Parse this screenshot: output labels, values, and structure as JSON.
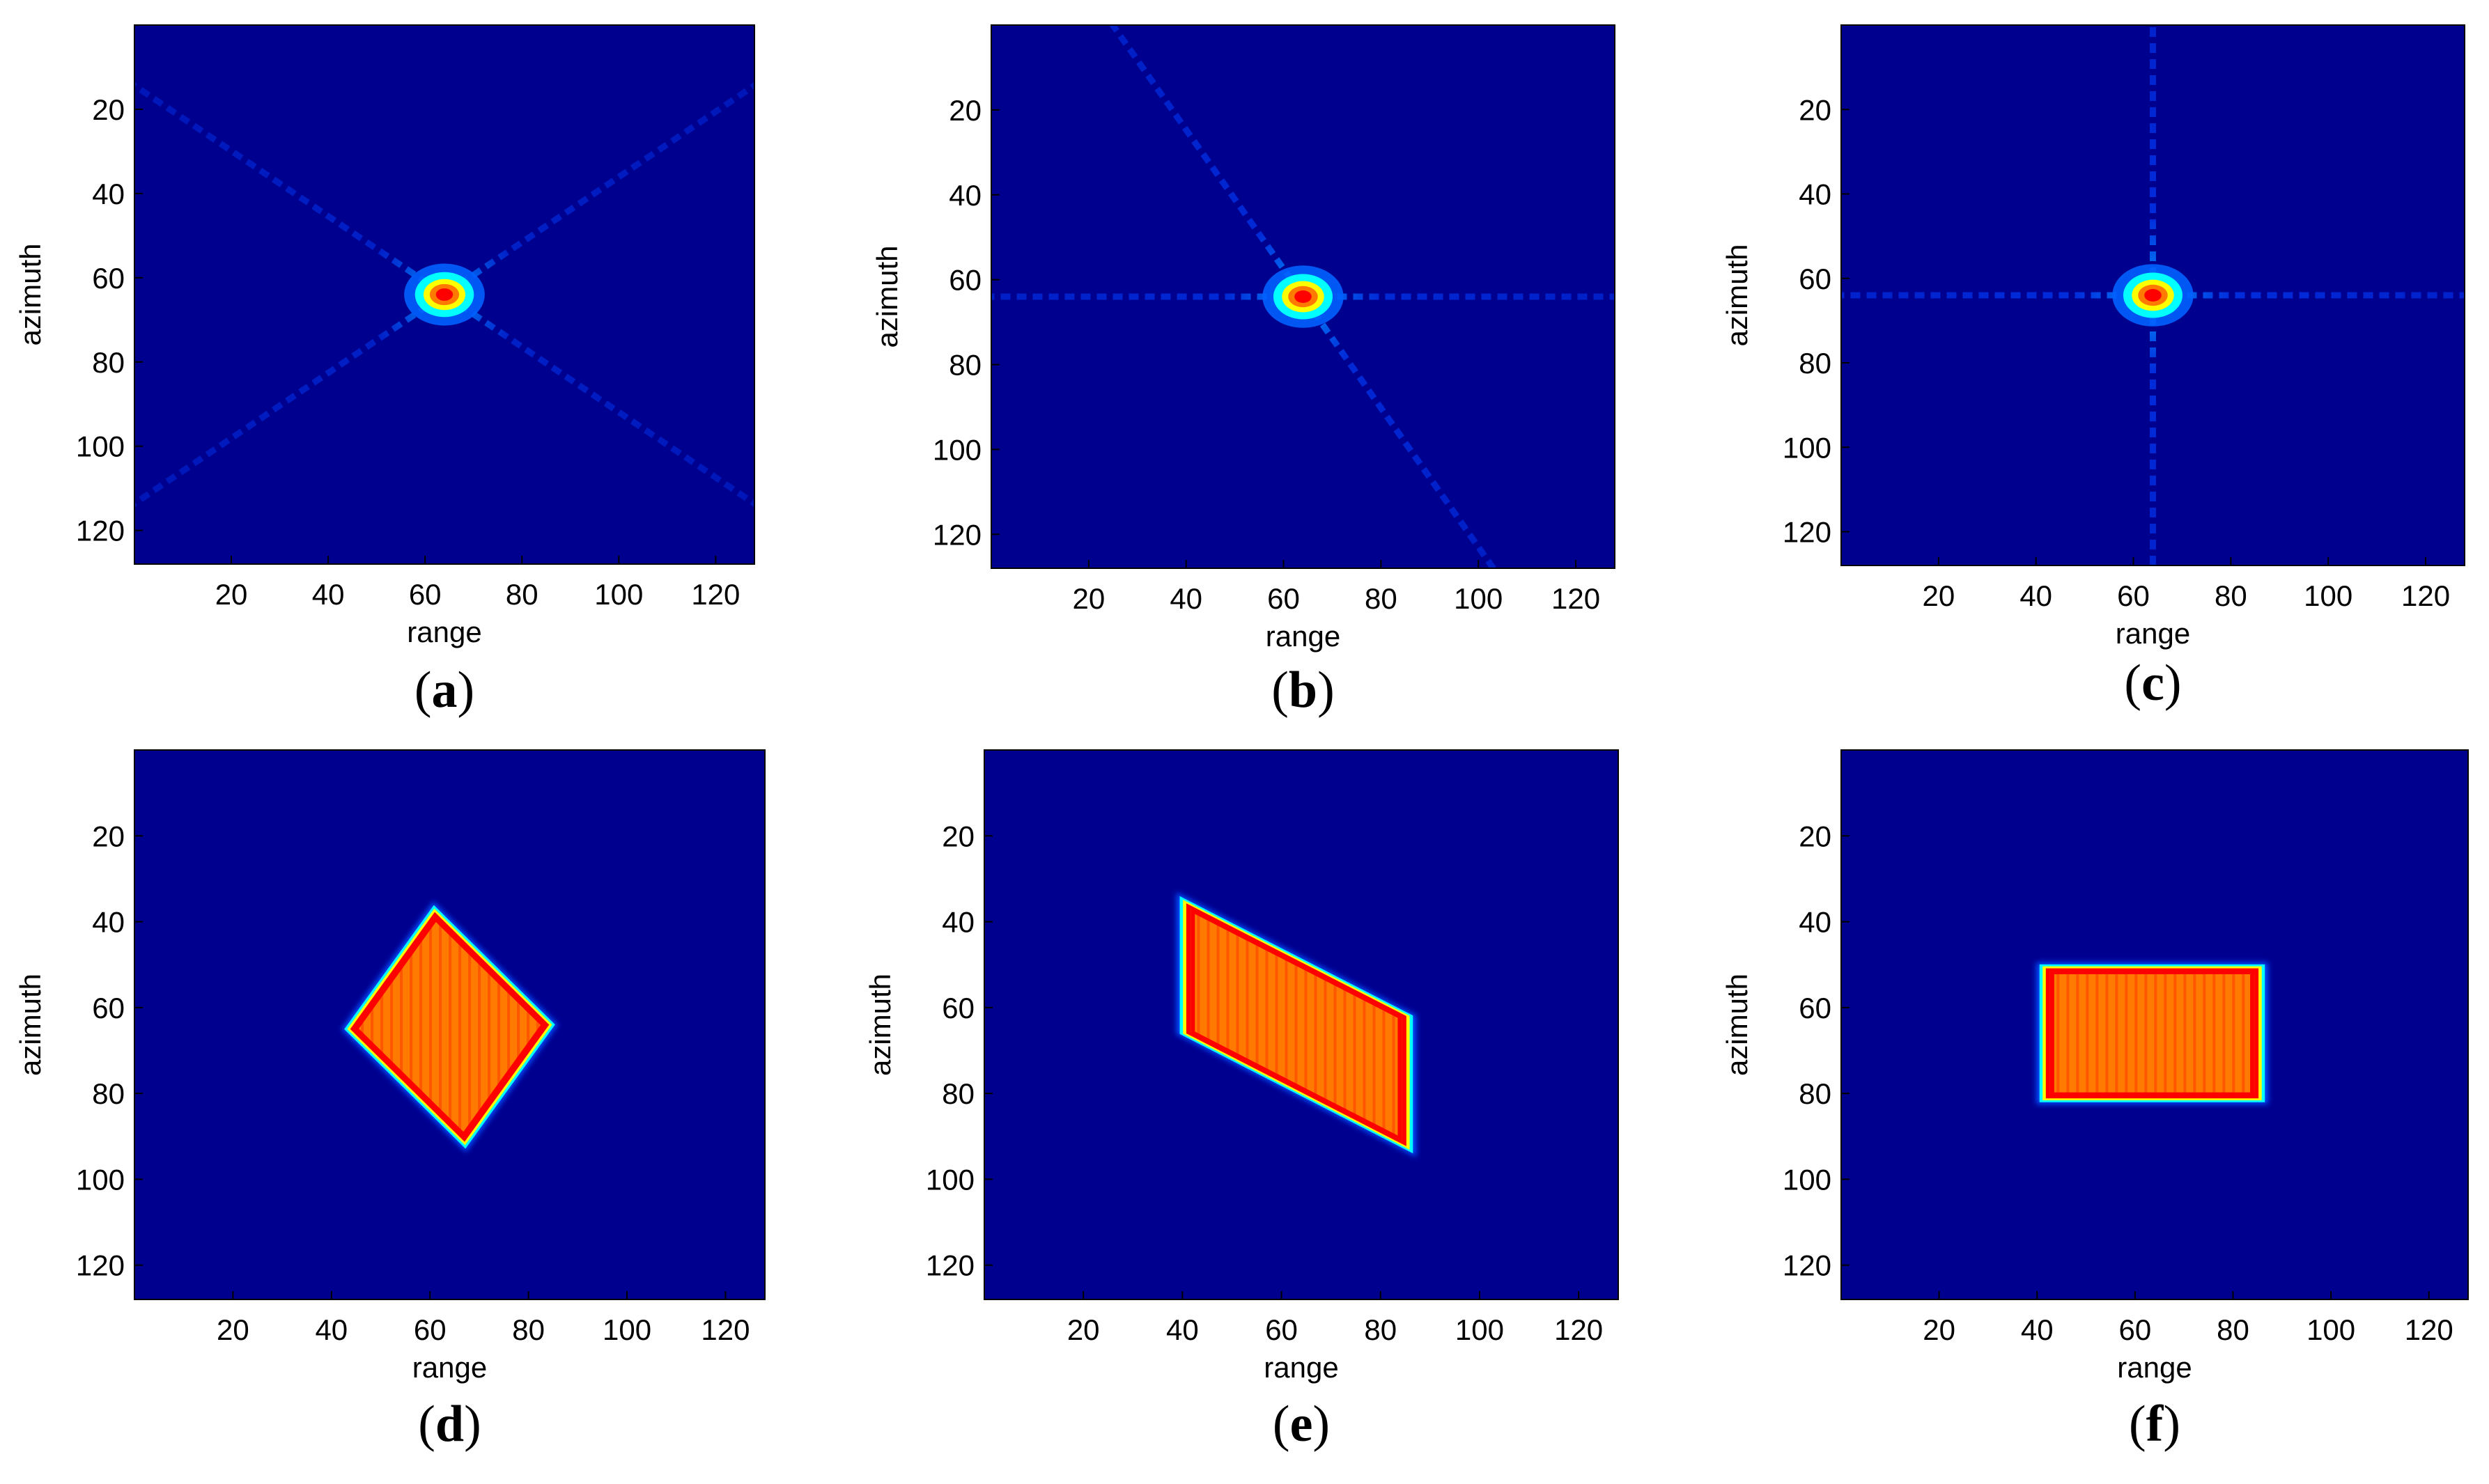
{
  "colors": {
    "background_field": "#00008f",
    "hot_core": "#ff0000",
    "warm_fill": "#ff7a00",
    "edge_yellow": "#ffff00",
    "edge_cyan": "#00ffff",
    "edge_blue": "#0080ff"
  },
  "chart_data": [
    {
      "type": "heatmap",
      "panel": "a",
      "caption_letter": "a",
      "xlabel": "range",
      "ylabel": "azimuth",
      "xlim": [
        0,
        128
      ],
      "ylim": [
        128,
        0
      ],
      "xticks": [
        20,
        40,
        60,
        80,
        100,
        120
      ],
      "yticks": [
        20,
        40,
        60,
        80,
        100,
        120
      ],
      "shape": "point",
      "peak": [
        64,
        64
      ],
      "sidelobe_angles_deg": [
        34,
        -34
      ],
      "sidelobe_strength": 0.55
    },
    {
      "type": "heatmap",
      "panel": "b",
      "caption_letter": "b",
      "xlabel": "range",
      "ylabel": "azimuth",
      "xlim": [
        0,
        128
      ],
      "ylim": [
        128,
        0
      ],
      "xticks": [
        20,
        40,
        60,
        80,
        100,
        120
      ],
      "yticks": [
        20,
        40,
        60,
        80,
        100,
        120
      ],
      "shape": "point",
      "peak": [
        64,
        64
      ],
      "sidelobe_angles_deg": [
        0,
        -55
      ],
      "sidelobe_strength": 0.7
    },
    {
      "type": "heatmap",
      "panel": "c",
      "caption_letter": "c",
      "xlabel": "range",
      "ylabel": "azimuth",
      "xlim": [
        0,
        128
      ],
      "ylim": [
        128,
        0
      ],
      "xticks": [
        20,
        40,
        60,
        80,
        100,
        120
      ],
      "yticks": [
        20,
        40,
        60,
        80,
        100,
        120
      ],
      "shape": "point",
      "peak": [
        64,
        64
      ],
      "sidelobe_angles_deg": [
        0,
        90
      ],
      "sidelobe_strength": 0.75
    },
    {
      "type": "heatmap",
      "panel": "d",
      "caption_letter": "d",
      "xlabel": "range",
      "ylabel": "azimuth",
      "xlim": [
        0,
        128
      ],
      "ylim": [
        128,
        0
      ],
      "xticks": [
        20,
        40,
        60,
        80,
        100,
        120
      ],
      "yticks": [
        20,
        40,
        60,
        80,
        100,
        120
      ],
      "shape": "area",
      "corners": [
        [
          61,
          38
        ],
        [
          84,
          64
        ],
        [
          67,
          91
        ],
        [
          44,
          65
        ]
      ]
    },
    {
      "type": "heatmap",
      "panel": "e",
      "caption_letter": "e",
      "xlabel": "range",
      "ylabel": "azimuth",
      "xlim": [
        0,
        128
      ],
      "ylim": [
        128,
        0
      ],
      "xticks": [
        20,
        40,
        60,
        80,
        100,
        120
      ],
      "yticks": [
        20,
        40,
        60,
        80,
        100,
        120
      ],
      "shape": "area",
      "corners": [
        [
          41,
          36
        ],
        [
          85,
          62
        ],
        [
          85,
          92
        ],
        [
          41,
          66
        ]
      ]
    },
    {
      "type": "heatmap",
      "panel": "f",
      "caption_letter": "f",
      "xlabel": "range",
      "ylabel": "azimuth",
      "xlim": [
        0,
        128
      ],
      "ylim": [
        128,
        0
      ],
      "xticks": [
        20,
        40,
        60,
        80,
        100,
        120
      ],
      "yticks": [
        20,
        40,
        60,
        80,
        100,
        120
      ],
      "shape": "area",
      "corners": [
        [
          42,
          51
        ],
        [
          85,
          51
        ],
        [
          85,
          81
        ],
        [
          42,
          81
        ]
      ]
    }
  ]
}
